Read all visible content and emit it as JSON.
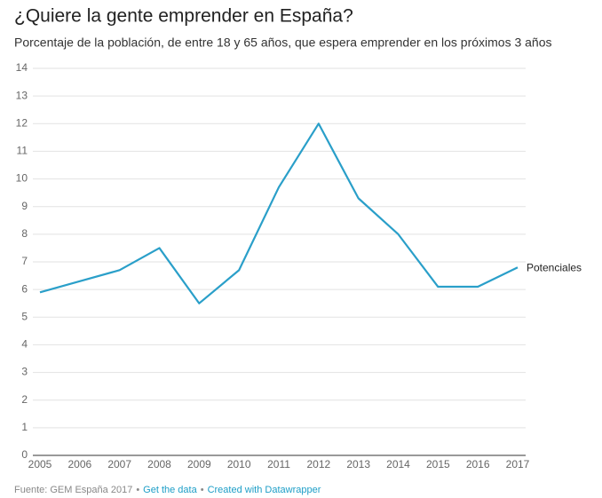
{
  "chart_data": {
    "type": "line",
    "title": "¿Quiere la gente emprender en España?",
    "subtitle": "Porcentaje de la población, de entre 18 y 65 años, que espera emprender en los próximos 3 años",
    "x": [
      2005,
      2006,
      2007,
      2008,
      2009,
      2010,
      2011,
      2012,
      2013,
      2014,
      2015,
      2016,
      2017
    ],
    "series": [
      {
        "name": "Potenciales",
        "color": "#2a9fc9",
        "values": [
          5.9,
          6.3,
          6.7,
          7.5,
          5.5,
          6.7,
          9.7,
          12,
          9.3,
          8.0,
          6.1,
          6.1,
          6.8
        ]
      }
    ],
    "xlim": [
      2005,
      2017
    ],
    "xticks": [
      2005,
      2006,
      2007,
      2008,
      2009,
      2010,
      2011,
      2012,
      2013,
      2014,
      2015,
      2016,
      2017
    ],
    "ylim": [
      0,
      14
    ],
    "yticks": [
      0,
      1,
      2,
      3,
      4,
      5,
      6,
      7,
      8,
      9,
      10,
      11,
      12,
      13,
      14
    ],
    "grid": true
  },
  "footer": {
    "source": "Fuente: GEM España 2017",
    "separator": "•",
    "links": [
      "Get the data",
      "Created with Datawrapper"
    ]
  }
}
